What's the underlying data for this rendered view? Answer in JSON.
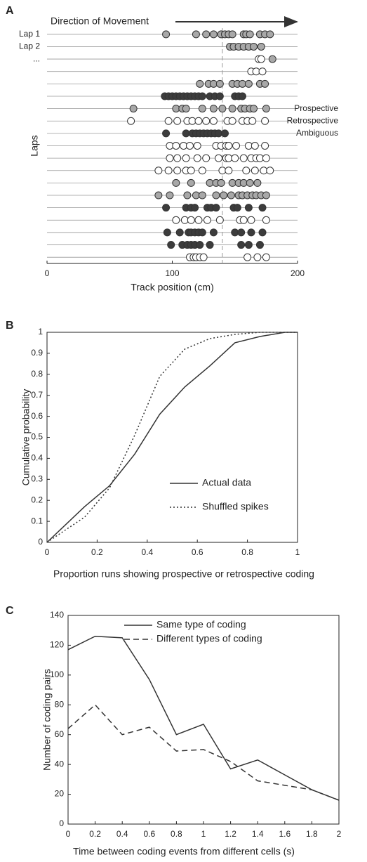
{
  "chart_data": [
    {
      "type": "scatter",
      "label": "A",
      "annotation": "Direction of Movement",
      "xlabel": "Track position (cm)",
      "ylabel": "Laps",
      "xlim": [
        0,
        200
      ],
      "xticks": [
        0,
        100,
        200
      ],
      "ylim": [
        0.5,
        19.5
      ],
      "yreverse": true,
      "yticks": [
        {
          "value": 1,
          "label": "Lap 1"
        },
        {
          "value": 2,
          "label": "Lap 2"
        },
        {
          "value": 3,
          "label": "..."
        }
      ],
      "vline": 140,
      "series": [
        {
          "name": "Prospective",
          "color": "#3c3c3c",
          "x": [
            94,
            97,
            100,
            103,
            106,
            109,
            112,
            115,
            118,
            121,
            124,
            130,
            134,
            138,
            150,
            153,
            156,
            95,
            111,
            116,
            119,
            122,
            125,
            128,
            131,
            134,
            137,
            142,
            95,
            111,
            115,
            118,
            128,
            131,
            135,
            149,
            152,
            161,
            172,
            96,
            106,
            113,
            115,
            118,
            121,
            124,
            133,
            150,
            155,
            163,
            172,
            99,
            108,
            112,
            115,
            118,
            122,
            130,
            155,
            161,
            170
          ],
          "y": [
            6,
            6,
            6,
            6,
            6,
            6,
            6,
            6,
            6,
            6,
            6,
            6,
            6,
            6,
            6,
            6,
            6,
            9,
            9,
            9,
            9,
            9,
            9,
            9,
            9,
            9,
            9,
            9,
            15,
            15,
            15,
            15,
            15,
            15,
            15,
            15,
            15,
            15,
            15,
            17,
            17,
            17,
            17,
            17,
            17,
            17,
            17,
            17,
            17,
            17,
            17,
            18,
            18,
            18,
            18,
            18,
            18,
            18,
            18,
            18,
            18
          ]
        },
        {
          "name": "Retrospective",
          "color": "#a8a8a8",
          "x": [
            95,
            119,
            127,
            133,
            139,
            142,
            145,
            148,
            157,
            159,
            162,
            170,
            174,
            178,
            146,
            149,
            153,
            157,
            161,
            165,
            171,
            180,
            122,
            129,
            133,
            138,
            148,
            152,
            156,
            161,
            170,
            174,
            69,
            103,
            108,
            111,
            124,
            133,
            140,
            148,
            155,
            158,
            162,
            165,
            175,
            103,
            115,
            130,
            135,
            139,
            148,
            153,
            157,
            162,
            168,
            89,
            98,
            112,
            119,
            124,
            135,
            141,
            147,
            153,
            156,
            160,
            164,
            167,
            171,
            175
          ],
          "y": [
            1,
            1,
            1,
            1,
            1,
            1,
            1,
            1,
            1,
            1,
            1,
            1,
            1,
            1,
            2,
            2,
            2,
            2,
            2,
            2,
            2,
            3,
            5,
            5,
            5,
            5,
            5,
            5,
            5,
            5,
            5,
            5,
            7,
            7,
            7,
            7,
            7,
            7,
            7,
            7,
            7,
            7,
            7,
            7,
            7,
            13,
            13,
            13,
            13,
            13,
            13,
            13,
            13,
            13,
            13,
            14,
            14,
            14,
            14,
            14,
            14,
            14,
            14,
            14,
            14,
            14,
            14,
            14,
            14,
            14
          ]
        },
        {
          "name": "Ambiguous",
          "color": "#ffffff",
          "x": [
            169,
            171,
            163,
            167,
            172,
            67,
            97,
            104,
            112,
            116,
            121,
            127,
            133,
            144,
            148,
            156,
            160,
            164,
            174,
            98,
            103,
            109,
            114,
            120,
            135,
            139,
            143,
            145,
            151,
            161,
            166,
            174,
            98,
            104,
            111,
            120,
            127,
            137,
            143,
            145,
            150,
            157,
            163,
            167,
            170,
            175,
            89,
            97,
            104,
            111,
            115,
            124,
            140,
            145,
            159,
            166,
            173,
            178,
            103,
            110,
            115,
            121,
            128,
            138,
            154,
            157,
            163,
            175,
            114,
            117,
            119,
            122,
            125,
            160,
            168,
            175
          ],
          "y": [
            3,
            3,
            4,
            4,
            4,
            8,
            8,
            8,
            8,
            8,
            8,
            8,
            8,
            8,
            8,
            8,
            8,
            8,
            8,
            10,
            10,
            10,
            10,
            10,
            10,
            10,
            10,
            10,
            10,
            10,
            10,
            10,
            11,
            11,
            11,
            11,
            11,
            11,
            11,
            11,
            11,
            11,
            11,
            11,
            11,
            11,
            12,
            12,
            12,
            12,
            12,
            12,
            12,
            12,
            12,
            12,
            12,
            12,
            16,
            16,
            16,
            16,
            16,
            16,
            16,
            16,
            16,
            16,
            19,
            19,
            19,
            19,
            19,
            19,
            19,
            19
          ]
        }
      ]
    },
    {
      "type": "line",
      "label": "B",
      "xlabel": "Proportion runs showing prospective or retrospective coding",
      "ylabel": "Cumulative probability",
      "xlim": [
        0,
        1
      ],
      "xticks": [
        0,
        0.2,
        0.4,
        0.6,
        0.8,
        1
      ],
      "ylim": [
        0,
        1
      ],
      "yticks": [
        0,
        0.1,
        0.2,
        0.3,
        0.4,
        0.5,
        0.6,
        0.7,
        0.8,
        0.9,
        1
      ],
      "x": [
        0,
        0.15,
        0.25,
        0.35,
        0.45,
        0.55,
        0.65,
        0.75,
        0.85,
        0.95,
        1
      ],
      "series": [
        {
          "name": "Actual data",
          "color": "#333333",
          "dash": "solid",
          "values": [
            0,
            0.17,
            0.27,
            0.42,
            0.61,
            0.74,
            0.84,
            0.95,
            0.98,
            1,
            1
          ]
        },
        {
          "name": "Shuffled spikes",
          "color": "#333333",
          "dash": "dotted",
          "values": [
            0,
            0.12,
            0.26,
            0.51,
            0.79,
            0.92,
            0.97,
            0.99,
            1,
            1,
            1
          ]
        }
      ]
    },
    {
      "type": "line",
      "label": "C",
      "xlabel": "Time between coding events from different cells (s)",
      "ylabel": "Number of coding pairs",
      "xlim": [
        0,
        2
      ],
      "xticks": [
        0,
        0.2,
        0.4,
        0.6,
        0.8,
        1,
        1.2,
        1.4,
        1.6,
        1.8,
        2
      ],
      "ylim": [
        0,
        140
      ],
      "yticks": [
        0,
        20,
        40,
        60,
        80,
        100,
        120,
        140
      ],
      "x": [
        0,
        0.2,
        0.4,
        0.6,
        0.8,
        1,
        1.2,
        1.4,
        1.6,
        1.8,
        2
      ],
      "series": [
        {
          "name": "Same type of coding",
          "color": "#333333",
          "dash": "solid",
          "values": [
            117,
            126,
            125,
            97,
            60,
            67,
            37,
            43,
            33,
            23,
            16
          ]
        },
        {
          "name": "Different types of coding",
          "color": "#333333",
          "dash": "dashed",
          "values": [
            64,
            80,
            60,
            65,
            49,
            50,
            42,
            29,
            26,
            23,
            16
          ]
        }
      ]
    }
  ]
}
